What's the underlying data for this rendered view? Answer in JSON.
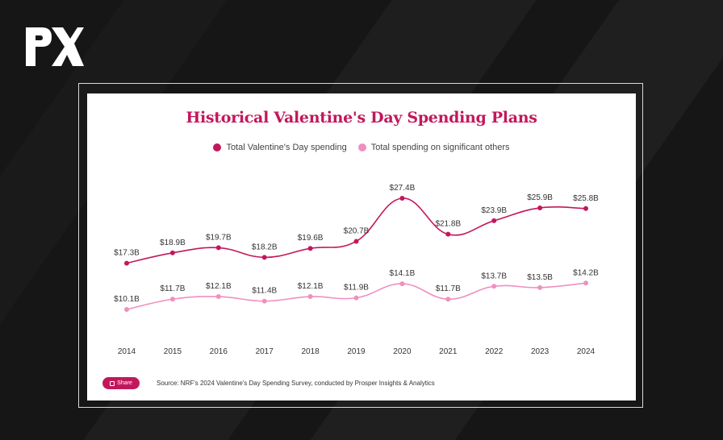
{
  "share_label": "Share",
  "source": "Source: NRF's 2024 Valentine's Day Spending Survey, conducted by Prosper Insights & Analytics",
  "colors": {
    "series1": "#c2185b",
    "series2": "#f08fc0",
    "title": "#c2185b"
  },
  "chart_data": {
    "type": "line",
    "title": "Historical Valentine's Day Spending Plans",
    "xlabel": "",
    "ylabel": "",
    "legend_position": "top",
    "grid": false,
    "ylim": [
      8,
      30
    ],
    "x": [
      "2014",
      "2015",
      "2016",
      "2017",
      "2018",
      "2019",
      "2020",
      "2021",
      "2022",
      "2023",
      "2024"
    ],
    "series": [
      {
        "name": "Total Valentine's Day spending",
        "values": [
          17.3,
          18.9,
          19.7,
          18.2,
          19.6,
          20.7,
          27.4,
          21.8,
          23.9,
          25.9,
          25.8
        ],
        "labels": [
          "$17.3B",
          "$18.9B",
          "$19.7B",
          "$18.2B",
          "$19.6B",
          "$20.7B",
          "$27.4B",
          "$21.8B",
          "$23.9B",
          "$25.9B",
          "$25.8B"
        ]
      },
      {
        "name": "Total spending on significant others",
        "values": [
          10.1,
          11.7,
          12.1,
          11.4,
          12.1,
          11.9,
          14.1,
          11.7,
          13.7,
          13.5,
          14.2
        ],
        "labels": [
          "$10.1B",
          "$11.7B",
          "$12.1B",
          "$11.4B",
          "$12.1B",
          "$11.9B",
          "$14.1B",
          "$11.7B",
          "$13.7B",
          "$13.5B",
          "$14.2B"
        ]
      }
    ]
  }
}
